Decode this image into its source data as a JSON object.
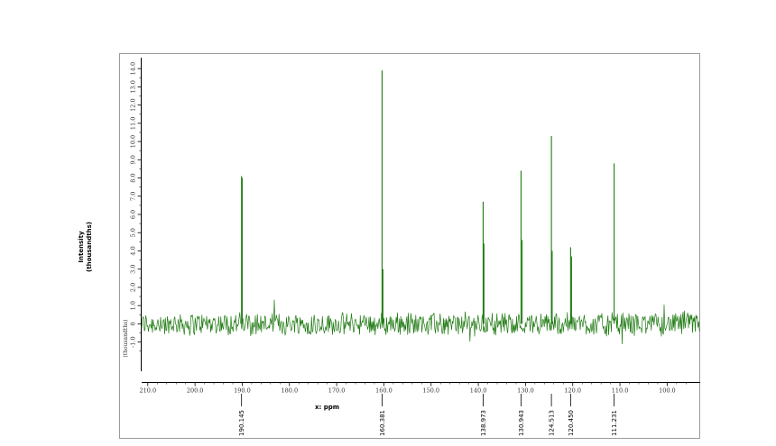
{
  "chart_data": {
    "type": "line",
    "xlabel": "x: ppm",
    "ylabel_line1": "Intensity",
    "ylabel_line2": "(thousandths)",
    "yunit_small": "(thousandths)",
    "xlim": [
      211.3,
      93.0
    ],
    "ylim": [
      -2.6,
      14.6
    ],
    "x_ticks": [
      "210.0",
      "200.0",
      "190.0",
      "180.0",
      "170.0",
      "160.0",
      "150.0",
      "140.0",
      "130.0",
      "120.0",
      "110.0",
      "100.0"
    ],
    "x_tick_values": [
      210,
      200,
      190,
      180,
      170,
      160,
      150,
      140,
      130,
      120,
      110,
      100
    ],
    "y_ticks": [
      "-1.0",
      "0",
      "1.0",
      "2.0",
      "3.0",
      "4.0",
      "5.0",
      "6.0",
      "7.0",
      "8.0",
      "9.0",
      "10.0",
      "11.0",
      "12.0",
      "13.0",
      "14.0"
    ],
    "y_tick_values": [
      -1,
      0,
      1,
      2,
      3,
      4,
      5,
      6,
      7,
      8,
      9,
      10,
      11,
      12,
      13,
      14
    ],
    "peaks": [
      {
        "x": 190.145,
        "label": "190.145",
        "height": 8.1
      },
      {
        "x": 160.381,
        "label": "160.381",
        "height": 13.9
      },
      {
        "x": 138.973,
        "label": "138.973",
        "height": 6.7
      },
      {
        "x": 130.943,
        "label": "130.943",
        "height": 8.4
      },
      {
        "x": 124.513,
        "label": "124.513",
        "height": 10.3
      },
      {
        "x": 120.45,
        "label": "120.450",
        "height": 4.2
      },
      {
        "x": 111.231,
        "label": "111.231",
        "height": 8.8
      }
    ],
    "secondary_lines": [
      {
        "x": 190.0,
        "height": 8.0
      },
      {
        "x": 160.2,
        "height": 3.0
      },
      {
        "x": 138.8,
        "height": 4.4
      },
      {
        "x": 130.7,
        "height": 4.6
      },
      {
        "x": 124.35,
        "height": 4.0
      },
      {
        "x": 120.25,
        "height": 3.7
      }
    ],
    "grid": false,
    "line_color": "#1f7a12",
    "tick_color": "#000000"
  }
}
